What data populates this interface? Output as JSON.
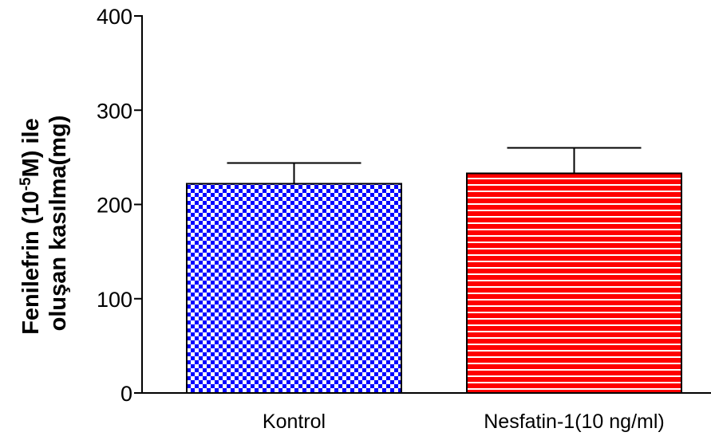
{
  "chart_data": {
    "type": "bar",
    "categories": [
      "Kontrol",
      "Nesfatin-1(10 ng/ml)"
    ],
    "values": [
      222,
      233
    ],
    "error_upper": [
      244,
      260
    ],
    "ylabel": {
      "line1_pre": "Fenilefrin (10",
      "line1_sup": "-5",
      "line1_post": "M) ile",
      "line2": "oluşan kasılma(mg)"
    },
    "ylim": [
      0,
      400
    ],
    "yticks": [
      0,
      100,
      200,
      300,
      400
    ],
    "grid": false,
    "bar_styles": [
      {
        "pattern": "checkerboard",
        "color": "#0000ff",
        "background": "#ffffff"
      },
      {
        "pattern": "horizontal-stripes",
        "color": "#ff0000",
        "background": "#ffffff"
      }
    ]
  }
}
